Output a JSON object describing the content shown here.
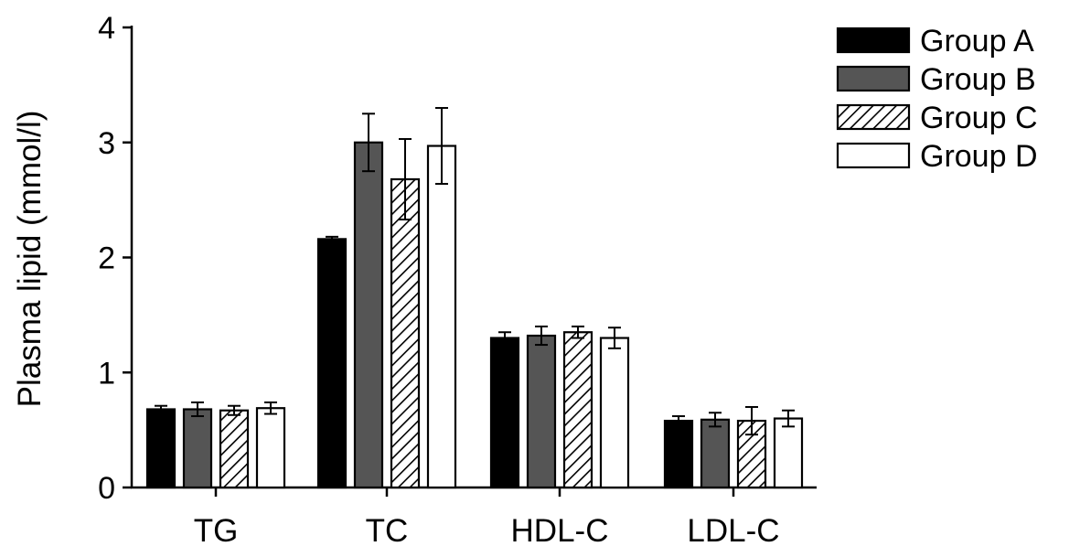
{
  "chart_data": {
    "type": "bar",
    "title": "",
    "xlabel": "",
    "ylabel": "Plasma lipid (mmol/l)",
    "ylim": [
      0,
      4
    ],
    "yticks": [
      0,
      1,
      2,
      3,
      4
    ],
    "categories": [
      "TG",
      "TC",
      "HDL-C",
      "LDL-C"
    ],
    "grid": false,
    "legend_position": "top-right",
    "series": [
      {
        "name": "Group A",
        "fill": "solid-black",
        "color": "#000000",
        "values": [
          0.68,
          2.16,
          1.3,
          0.58
        ],
        "errors": [
          0.03,
          0.02,
          0.05,
          0.04
        ]
      },
      {
        "name": "Group B",
        "fill": "solid-gray",
        "color": "#555555",
        "values": [
          0.68,
          3.0,
          1.32,
          0.59
        ],
        "errors": [
          0.06,
          0.25,
          0.08,
          0.06
        ]
      },
      {
        "name": "Group C",
        "fill": "diagonal-hatch",
        "color": "#ffffff",
        "values": [
          0.67,
          2.68,
          1.35,
          0.58
        ],
        "errors": [
          0.04,
          0.35,
          0.05,
          0.12
        ]
      },
      {
        "name": "Group D",
        "fill": "solid-white",
        "color": "#ffffff",
        "values": [
          0.69,
          2.97,
          1.3,
          0.6
        ],
        "errors": [
          0.05,
          0.33,
          0.09,
          0.07
        ]
      }
    ]
  }
}
